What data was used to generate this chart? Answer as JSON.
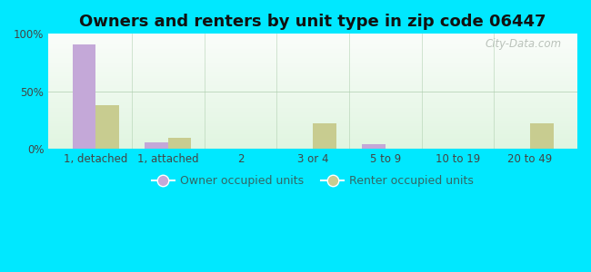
{
  "title": "Owners and renters by unit type in zip code 06447",
  "categories": [
    "1, detached",
    "1, attached",
    "2",
    "3 or 4",
    "5 to 9",
    "10 to 19",
    "20 to 49"
  ],
  "owner_values": [
    91,
    6,
    0,
    0.5,
    4,
    0,
    0
  ],
  "renter_values": [
    38,
    10,
    0,
    22,
    0,
    0,
    22
  ],
  "owner_color": "#c4a8d8",
  "renter_color": "#c8cc90",
  "background_outer": "#00e8ff",
  "title_fontsize": 13,
  "axis_label_fontsize": 8.5,
  "legend_fontsize": 9,
  "ylim": [
    0,
    100
  ],
  "yticks": [
    0,
    50,
    100
  ],
  "ytick_labels": [
    "0%",
    "50%",
    "100%"
  ],
  "bar_width": 0.32,
  "watermark": "City-Data.com",
  "legend_owner": "Owner occupied units",
  "legend_renter": "Renter occupied units"
}
